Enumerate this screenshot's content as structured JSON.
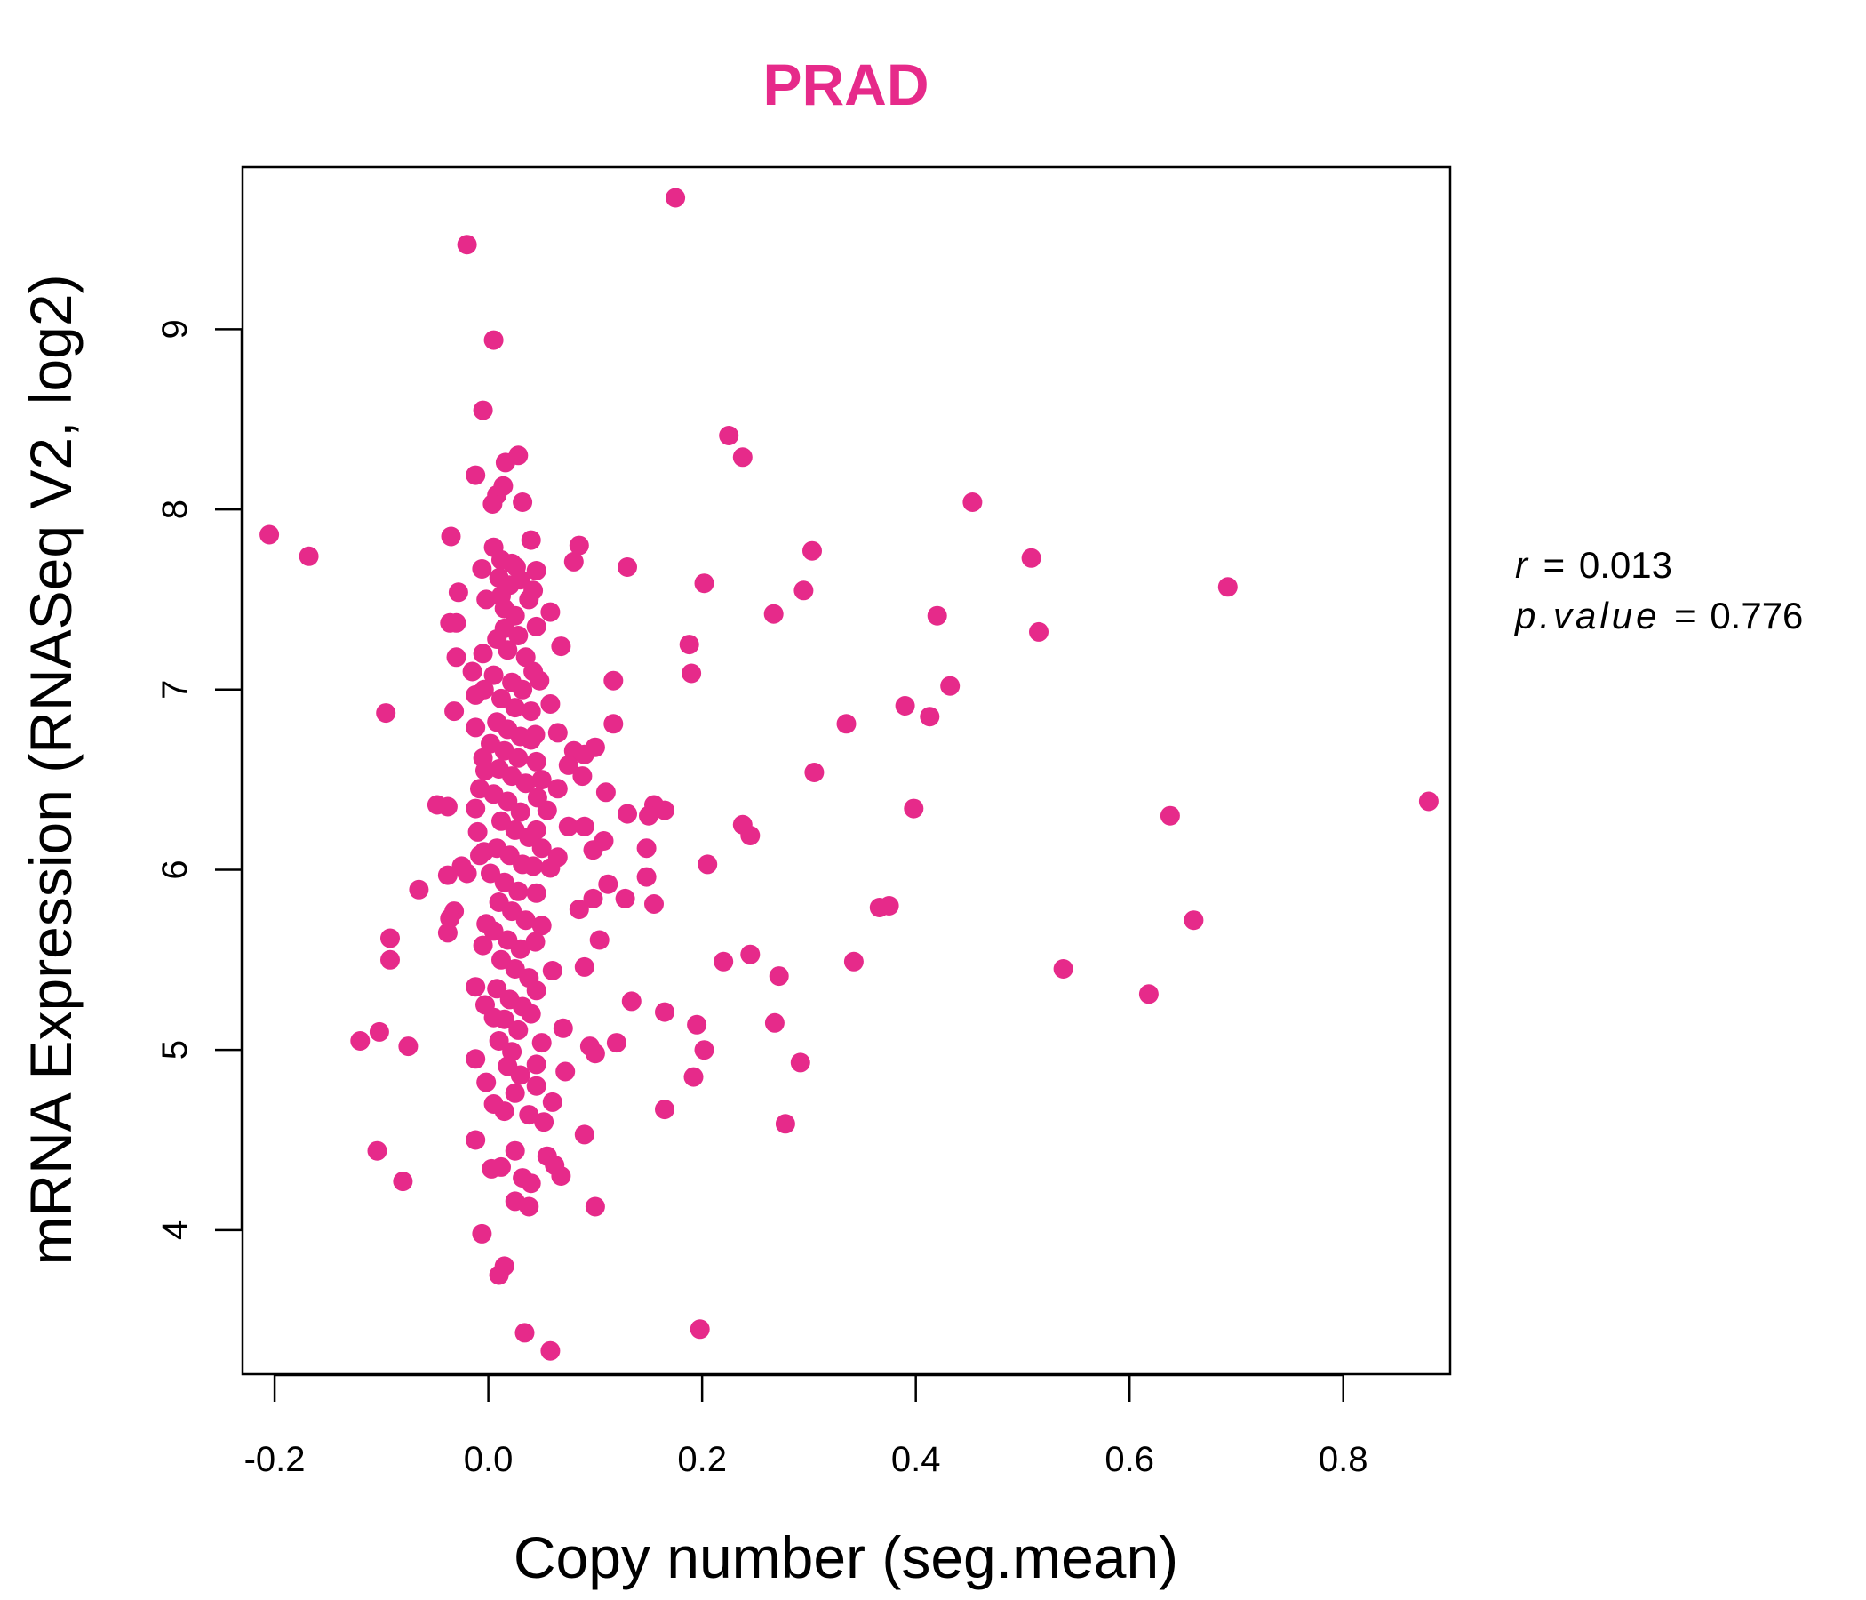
{
  "chart_data": {
    "type": "scatter",
    "title": "PRAD",
    "xlabel": "Copy number (seg.mean)",
    "ylabel": "mRNA Expression (RNASeq V2, log2)",
    "xlim": [
      -0.23,
      0.9
    ],
    "ylim": [
      3.2,
      9.9
    ],
    "x_ticks": [
      -0.2,
      0.0,
      0.2,
      0.4,
      0.6,
      0.8
    ],
    "x_tick_labels": [
      "-0.2",
      "0.0",
      "0.2",
      "0.4",
      "0.6",
      "0.8"
    ],
    "y_ticks": [
      4,
      5,
      6,
      7,
      8,
      9
    ],
    "y_tick_labels": [
      "4",
      "5",
      "6",
      "7",
      "8",
      "9"
    ],
    "color": "#E62A8A",
    "annotations": {
      "r_label": "r",
      "r_value": "0.013",
      "p_label": "p.value",
      "p_value": "0.776",
      "equals": "="
    },
    "points": [
      {
        "x": 0.175,
        "y": 9.73
      },
      {
        "x": -0.02,
        "y": 9.47
      },
      {
        "x": 0.005,
        "y": 8.94
      },
      {
        "x": -0.005,
        "y": 8.55
      },
      {
        "x": 0.225,
        "y": 8.41
      },
      {
        "x": 0.238,
        "y": 8.29
      },
      {
        "x": 0.028,
        "y": 8.3
      },
      {
        "x": 0.016,
        "y": 8.26
      },
      {
        "x": -0.012,
        "y": 8.19
      },
      {
        "x": 0.014,
        "y": 8.13
      },
      {
        "x": 0.008,
        "y": 8.08
      },
      {
        "x": 0.032,
        "y": 8.04
      },
      {
        "x": 0.004,
        "y": 8.03
      },
      {
        "x": 0.453,
        "y": 8.04
      },
      {
        "x": -0.205,
        "y": 7.86
      },
      {
        "x": -0.168,
        "y": 7.74
      },
      {
        "x": -0.035,
        "y": 7.85
      },
      {
        "x": 0.04,
        "y": 7.83
      },
      {
        "x": 0.085,
        "y": 7.8
      },
      {
        "x": 0.005,
        "y": 7.79
      },
      {
        "x": 0.303,
        "y": 7.77
      },
      {
        "x": 0.508,
        "y": 7.73
      },
      {
        "x": 0.08,
        "y": 7.71
      },
      {
        "x": 0.13,
        "y": 7.68
      },
      {
        "x": -0.006,
        "y": 7.67
      },
      {
        "x": 0.022,
        "y": 7.7
      },
      {
        "x": 0.045,
        "y": 7.66
      },
      {
        "x": 0.202,
        "y": 7.59
      },
      {
        "x": 0.692,
        "y": 7.57
      },
      {
        "x": 0.295,
        "y": 7.55
      },
      {
        "x": -0.028,
        "y": 7.54
      },
      {
        "x": 0.012,
        "y": 7.52
      },
      {
        "x": 0.038,
        "y": 7.5
      },
      {
        "x": 0.058,
        "y": 7.43
      },
      {
        "x": 0.267,
        "y": 7.42
      },
      {
        "x": 0.42,
        "y": 7.41
      },
      {
        "x": -0.036,
        "y": 7.37
      },
      {
        "x": -0.03,
        "y": 7.37
      },
      {
        "x": 0.015,
        "y": 7.34
      },
      {
        "x": 0.515,
        "y": 7.32
      },
      {
        "x": 0.188,
        "y": 7.25
      },
      {
        "x": 0.068,
        "y": 7.24
      },
      {
        "x": -0.03,
        "y": 7.18
      },
      {
        "x": -0.005,
        "y": 7.2
      },
      {
        "x": 0.042,
        "y": 7.1
      },
      {
        "x": -0.015,
        "y": 7.1
      },
      {
        "x": 0.19,
        "y": 7.09
      },
      {
        "x": 0.117,
        "y": 7.05
      },
      {
        "x": 0.432,
        "y": 7.02
      },
      {
        "x": -0.012,
        "y": 6.97
      },
      {
        "x": 0.058,
        "y": 6.92
      },
      {
        "x": 0.39,
        "y": 6.91
      },
      {
        "x": -0.096,
        "y": 6.87
      },
      {
        "x": -0.032,
        "y": 6.88
      },
      {
        "x": 0.413,
        "y": 6.85
      },
      {
        "x": 0.335,
        "y": 6.81
      },
      {
        "x": 0.117,
        "y": 6.81
      },
      {
        "x": -0.012,
        "y": 6.79
      },
      {
        "x": 0.065,
        "y": 6.76
      },
      {
        "x": 0.04,
        "y": 6.72
      },
      {
        "x": 0.1,
        "y": 6.68
      },
      {
        "x": 0.08,
        "y": 6.66
      },
      {
        "x": 0.09,
        "y": 6.64
      },
      {
        "x": -0.005,
        "y": 6.62
      },
      {
        "x": 0.045,
        "y": 6.6
      },
      {
        "x": 0.075,
        "y": 6.58
      },
      {
        "x": 0.305,
        "y": 6.54
      },
      {
        "x": 0.05,
        "y": 6.5
      },
      {
        "x": 0.088,
        "y": 6.52
      },
      {
        "x": 0.065,
        "y": 6.45
      },
      {
        "x": 0.11,
        "y": 6.43
      },
      {
        "x": -0.008,
        "y": 6.45
      },
      {
        "x": -0.048,
        "y": 6.36
      },
      {
        "x": -0.038,
        "y": 6.35
      },
      {
        "x": 0.155,
        "y": 6.36
      },
      {
        "x": 0.165,
        "y": 6.33
      },
      {
        "x": -0.012,
        "y": 6.34
      },
      {
        "x": 0.398,
        "y": 6.34
      },
      {
        "x": 0.13,
        "y": 6.31
      },
      {
        "x": 0.15,
        "y": 6.3
      },
      {
        "x": 0.055,
        "y": 6.33
      },
      {
        "x": 0.638,
        "y": 6.3
      },
      {
        "x": 0.88,
        "y": 6.38
      },
      {
        "x": 0.238,
        "y": 6.25
      },
      {
        "x": 0.075,
        "y": 6.24
      },
      {
        "x": 0.09,
        "y": 6.24
      },
      {
        "x": 0.045,
        "y": 6.22
      },
      {
        "x": -0.01,
        "y": 6.21
      },
      {
        "x": 0.245,
        "y": 6.19
      },
      {
        "x": 0.108,
        "y": 6.16
      },
      {
        "x": 0.05,
        "y": 6.12
      },
      {
        "x": 0.148,
        "y": 6.12
      },
      {
        "x": 0.098,
        "y": 6.11
      },
      {
        "x": -0.008,
        "y": 6.08
      },
      {
        "x": 0.065,
        "y": 6.07
      },
      {
        "x": 0.205,
        "y": 6.03
      },
      {
        "x": -0.025,
        "y": 6.02
      },
      {
        "x": 0.058,
        "y": 6.01
      },
      {
        "x": -0.038,
        "y": 5.97
      },
      {
        "x": -0.02,
        "y": 5.98
      },
      {
        "x": 0.148,
        "y": 5.96
      },
      {
        "x": 0.112,
        "y": 5.92
      },
      {
        "x": -0.065,
        "y": 5.89
      },
      {
        "x": 0.045,
        "y": 5.87
      },
      {
        "x": 0.098,
        "y": 5.84
      },
      {
        "x": 0.128,
        "y": 5.84
      },
      {
        "x": 0.155,
        "y": 5.81
      },
      {
        "x": 0.375,
        "y": 5.8
      },
      {
        "x": 0.366,
        "y": 5.79
      },
      {
        "x": -0.032,
        "y": 5.77
      },
      {
        "x": 0.085,
        "y": 5.78
      },
      {
        "x": -0.036,
        "y": 5.73
      },
      {
        "x": 0.66,
        "y": 5.72
      },
      {
        "x": 0.05,
        "y": 5.69
      },
      {
        "x": -0.038,
        "y": 5.65
      },
      {
        "x": -0.092,
        "y": 5.62
      },
      {
        "x": 0.104,
        "y": 5.61
      },
      {
        "x": -0.005,
        "y": 5.58
      },
      {
        "x": 0.245,
        "y": 5.53
      },
      {
        "x": -0.092,
        "y": 5.5
      },
      {
        "x": 0.22,
        "y": 5.49
      },
      {
        "x": 0.342,
        "y": 5.49
      },
      {
        "x": 0.09,
        "y": 5.46
      },
      {
        "x": 0.538,
        "y": 5.45
      },
      {
        "x": 0.06,
        "y": 5.44
      },
      {
        "x": 0.272,
        "y": 5.41
      },
      {
        "x": -0.012,
        "y": 5.35
      },
      {
        "x": 0.045,
        "y": 5.33
      },
      {
        "x": 0.618,
        "y": 5.31
      },
      {
        "x": 0.134,
        "y": 5.27
      },
      {
        "x": 0.165,
        "y": 5.21
      },
      {
        "x": 0.005,
        "y": 5.18
      },
      {
        "x": 0.195,
        "y": 5.14
      },
      {
        "x": 0.268,
        "y": 5.15
      },
      {
        "x": 0.07,
        "y": 5.12
      },
      {
        "x": -0.102,
        "y": 5.1
      },
      {
        "x": -0.12,
        "y": 5.05
      },
      {
        "x": 0.12,
        "y": 5.04
      },
      {
        "x": 0.05,
        "y": 5.04
      },
      {
        "x": -0.075,
        "y": 5.02
      },
      {
        "x": 0.095,
        "y": 5.02
      },
      {
        "x": 0.202,
        "y": 5.0
      },
      {
        "x": 0.1,
        "y": 4.98
      },
      {
        "x": -0.012,
        "y": 4.95
      },
      {
        "x": 0.292,
        "y": 4.93
      },
      {
        "x": 0.045,
        "y": 4.92
      },
      {
        "x": 0.072,
        "y": 4.88
      },
      {
        "x": 0.192,
        "y": 4.85
      },
      {
        "x": -0.002,
        "y": 4.82
      },
      {
        "x": 0.045,
        "y": 4.8
      },
      {
        "x": 0.06,
        "y": 4.71
      },
      {
        "x": 0.005,
        "y": 4.7
      },
      {
        "x": 0.165,
        "y": 4.67
      },
      {
        "x": 0.015,
        "y": 4.66
      },
      {
        "x": 0.038,
        "y": 4.64
      },
      {
        "x": 0.052,
        "y": 4.6
      },
      {
        "x": 0.278,
        "y": 4.59
      },
      {
        "x": 0.09,
        "y": 4.53
      },
      {
        "x": -0.012,
        "y": 4.5
      },
      {
        "x": 0.025,
        "y": 4.44
      },
      {
        "x": -0.104,
        "y": 4.44
      },
      {
        "x": 0.055,
        "y": 4.41
      },
      {
        "x": 0.062,
        "y": 4.36
      },
      {
        "x": 0.003,
        "y": 4.34
      },
      {
        "x": 0.012,
        "y": 4.35
      },
      {
        "x": 0.068,
        "y": 4.3
      },
      {
        "x": 0.032,
        "y": 4.29
      },
      {
        "x": -0.08,
        "y": 4.27
      },
      {
        "x": 0.04,
        "y": 4.26
      },
      {
        "x": 0.025,
        "y": 4.16
      },
      {
        "x": 0.038,
        "y": 4.13
      },
      {
        "x": 0.1,
        "y": 4.13
      },
      {
        "x": -0.006,
        "y": 3.98
      },
      {
        "x": 0.015,
        "y": 3.8
      },
      {
        "x": 0.01,
        "y": 3.75
      },
      {
        "x": 0.198,
        "y": 3.45
      },
      {
        "x": 0.034,
        "y": 3.43
      },
      {
        "x": 0.058,
        "y": 3.33
      },
      {
        "x": 0.01,
        "y": 7.62
      },
      {
        "x": 0.02,
        "y": 7.58
      },
      {
        "x": 0.03,
        "y": 7.61
      },
      {
        "x": 0.015,
        "y": 7.45
      },
      {
        "x": 0.025,
        "y": 7.41
      },
      {
        "x": 0.008,
        "y": 7.28
      },
      {
        "x": 0.028,
        "y": 7.3
      },
      {
        "x": 0.018,
        "y": 7.22
      },
      {
        "x": 0.035,
        "y": 7.18
      },
      {
        "x": 0.005,
        "y": 7.08
      },
      {
        "x": 0.022,
        "y": 7.04
      },
      {
        "x": 0.032,
        "y": 7.0
      },
      {
        "x": 0.012,
        "y": 6.95
      },
      {
        "x": 0.025,
        "y": 6.9
      },
      {
        "x": 0.04,
        "y": 6.88
      },
      {
        "x": 0.008,
        "y": 6.82
      },
      {
        "x": 0.018,
        "y": 6.78
      },
      {
        "x": 0.03,
        "y": 6.74
      },
      {
        "x": 0.002,
        "y": 6.7
      },
      {
        "x": 0.015,
        "y": 6.66
      },
      {
        "x": 0.028,
        "y": 6.62
      },
      {
        "x": 0.01,
        "y": 6.56
      },
      {
        "x": 0.022,
        "y": 6.52
      },
      {
        "x": 0.035,
        "y": 6.48
      },
      {
        "x": 0.005,
        "y": 6.42
      },
      {
        "x": 0.018,
        "y": 6.38
      },
      {
        "x": 0.03,
        "y": 6.32
      },
      {
        "x": 0.012,
        "y": 6.27
      },
      {
        "x": 0.025,
        "y": 6.22
      },
      {
        "x": 0.038,
        "y": 6.18
      },
      {
        "x": 0.008,
        "y": 6.12
      },
      {
        "x": 0.02,
        "y": 6.08
      },
      {
        "x": 0.032,
        "y": 6.03
      },
      {
        "x": 0.002,
        "y": 5.98
      },
      {
        "x": 0.015,
        "y": 5.93
      },
      {
        "x": 0.028,
        "y": 5.88
      },
      {
        "x": 0.01,
        "y": 5.82
      },
      {
        "x": 0.022,
        "y": 5.77
      },
      {
        "x": 0.035,
        "y": 5.72
      },
      {
        "x": 0.005,
        "y": 5.66
      },
      {
        "x": 0.018,
        "y": 5.61
      },
      {
        "x": 0.03,
        "y": 5.56
      },
      {
        "x": 0.012,
        "y": 5.5
      },
      {
        "x": 0.025,
        "y": 5.45
      },
      {
        "x": 0.038,
        "y": 5.4
      },
      {
        "x": 0.008,
        "y": 5.34
      },
      {
        "x": 0.02,
        "y": 5.28
      },
      {
        "x": 0.032,
        "y": 5.24
      },
      {
        "x": 0.015,
        "y": 5.17
      },
      {
        "x": 0.028,
        "y": 5.11
      },
      {
        "x": 0.01,
        "y": 5.05
      },
      {
        "x": 0.022,
        "y": 4.99
      },
      {
        "x": 0.018,
        "y": 4.91
      },
      {
        "x": 0.03,
        "y": 4.86
      },
      {
        "x": 0.025,
        "y": 4.76
      },
      {
        "x": 0.012,
        "y": 7.72
      },
      {
        "x": 0.026,
        "y": 7.68
      },
      {
        "x": 0.042,
        "y": 7.55
      },
      {
        "x": 0.045,
        "y": 7.35
      },
      {
        "x": 0.048,
        "y": 7.05
      },
      {
        "x": 0.044,
        "y": 6.75
      },
      {
        "x": 0.046,
        "y": 6.4
      },
      {
        "x": 0.042,
        "y": 6.02
      },
      {
        "x": 0.044,
        "y": 5.6
      },
      {
        "x": 0.04,
        "y": 5.2
      },
      {
        "x": -0.002,
        "y": 7.5
      },
      {
        "x": -0.004,
        "y": 7.0
      },
      {
        "x": -0.003,
        "y": 6.55
      },
      {
        "x": -0.004,
        "y": 6.1
      },
      {
        "x": -0.002,
        "y": 5.7
      },
      {
        "x": -0.003,
        "y": 5.25
      }
    ]
  }
}
